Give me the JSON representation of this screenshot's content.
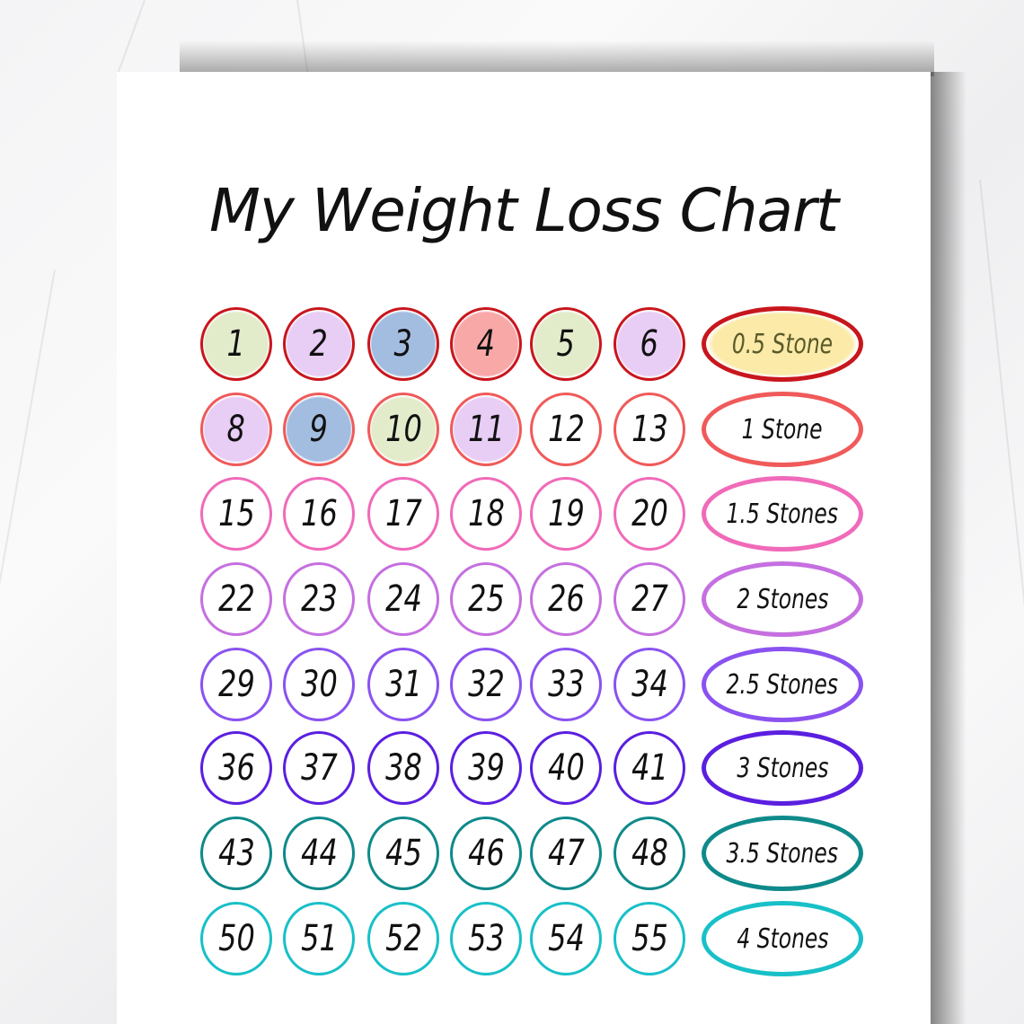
{
  "title": "My Weight Loss Chart",
  "rows": [
    {
      "color": "#c8161d",
      "numbers": [
        "1",
        "2",
        "3",
        "4",
        "5",
        "6"
      ],
      "fills": [
        "#e3ecca",
        "#e8cdf5",
        "#a3bde0",
        "#f9a8a8",
        "#e3ecca",
        "#e8cdf5"
      ],
      "stone": "0.5 Stone",
      "stone_fill": "#fbeaa8"
    },
    {
      "color": "#f05a5a",
      "numbers": [
        "8",
        "9",
        "10",
        "11",
        "12",
        "13"
      ],
      "fills": [
        "#e8cdf5",
        "#a3bde0",
        "#e3ecca",
        "#e8cdf5",
        null,
        null
      ],
      "stone": "1 Stone",
      "stone_fill": null
    },
    {
      "color": "#f06ab9",
      "numbers": [
        "15",
        "16",
        "17",
        "18",
        "19",
        "20"
      ],
      "fills": [],
      "stone": "1.5 Stones",
      "stone_fill": null
    },
    {
      "color": "#c66fe0",
      "numbers": [
        "22",
        "23",
        "24",
        "25",
        "26",
        "27"
      ],
      "fills": [],
      "stone": "2 Stones",
      "stone_fill": null
    },
    {
      "color": "#8a52f0",
      "numbers": [
        "29",
        "30",
        "31",
        "32",
        "33",
        "34"
      ],
      "fills": [],
      "stone": "2.5 Stones",
      "stone_fill": null
    },
    {
      "color": "#5a1fe0",
      "numbers": [
        "36",
        "37",
        "38",
        "39",
        "40",
        "41"
      ],
      "fills": [],
      "stone": "3 Stones",
      "stone_fill": null
    },
    {
      "color": "#0f8a8a",
      "numbers": [
        "43",
        "44",
        "45",
        "46",
        "47",
        "48"
      ],
      "fills": [],
      "stone": "3.5 Stones",
      "stone_fill": null
    },
    {
      "color": "#18c0c8",
      "numbers": [
        "50",
        "51",
        "52",
        "53",
        "54",
        "55"
      ],
      "fills": [],
      "stone": "4 Stones",
      "stone_fill": null
    }
  ]
}
